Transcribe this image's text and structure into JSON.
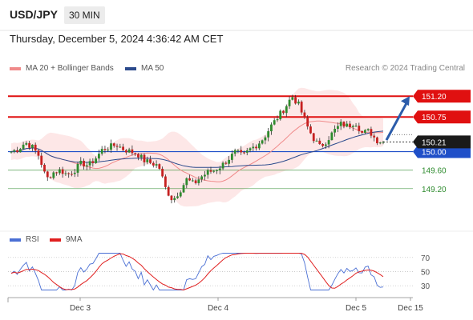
{
  "header": {
    "symbol": "USD/JPY",
    "timeframe": "30 MIN",
    "datetime": "Thursday, December 5, 2024 4:36:42 AM CET"
  },
  "legend": {
    "ma20_label": "MA 20 + Bollinger Bands",
    "ma20_color": "#f08a8a",
    "ma50_label": "MA 50",
    "ma50_color": "#2b4a8c"
  },
  "credit": "Research © 2024 Trading Central",
  "rsi_legend": {
    "rsi_label": "RSI",
    "rsi_color": "#4a6fd4",
    "ma_label": "9MA",
    "ma_color": "#e02020"
  },
  "chart_data": {
    "type": "candlestick",
    "y_range": [
      148.4,
      151.55
    ],
    "current_price": "150.21",
    "levels": [
      {
        "label": "151.20",
        "value": 151.2,
        "style": "resistance",
        "color": "#e01010"
      },
      {
        "label": "150.75",
        "value": 150.75,
        "style": "resistance",
        "color": "#e01010"
      },
      {
        "label": "150.00",
        "value": 150.0,
        "style": "pivot",
        "color": "#1f4fc8"
      },
      {
        "label": "149.60",
        "value": 149.6,
        "style": "support",
        "color": "#2e8b2e"
      },
      {
        "label": "149.20",
        "value": 149.2,
        "style": "support",
        "color": "#2e8b2e"
      }
    ],
    "x_labels": [
      "Dec 3",
      "Dec 4",
      "Dec 5",
      "Dec 15"
    ],
    "rsi_ticks": [
      "70",
      "50",
      "30"
    ],
    "rsi_range": [
      20,
      80
    ],
    "price_path": [
      150.0,
      150.05,
      150.2,
      150.1,
      149.9,
      149.4,
      149.55,
      149.6,
      149.5,
      149.6,
      149.75,
      149.7,
      149.85,
      150.05,
      150.1,
      150.15,
      150.05,
      150.0,
      149.95,
      149.8,
      149.75,
      149.7,
      149.2,
      148.95,
      149.15,
      149.4,
      149.3,
      149.45,
      149.55,
      149.6,
      149.7,
      149.85,
      150.0,
      149.9,
      150.05,
      150.15,
      150.3,
      150.55,
      150.75,
      150.95,
      151.2,
      151.0,
      150.6,
      150.3,
      150.1,
      150.25,
      150.45,
      150.6,
      150.55,
      150.65,
      150.4,
      150.45,
      150.25,
      150.21
    ],
    "projection": {
      "from": 150.25,
      "to": 151.2
    }
  }
}
